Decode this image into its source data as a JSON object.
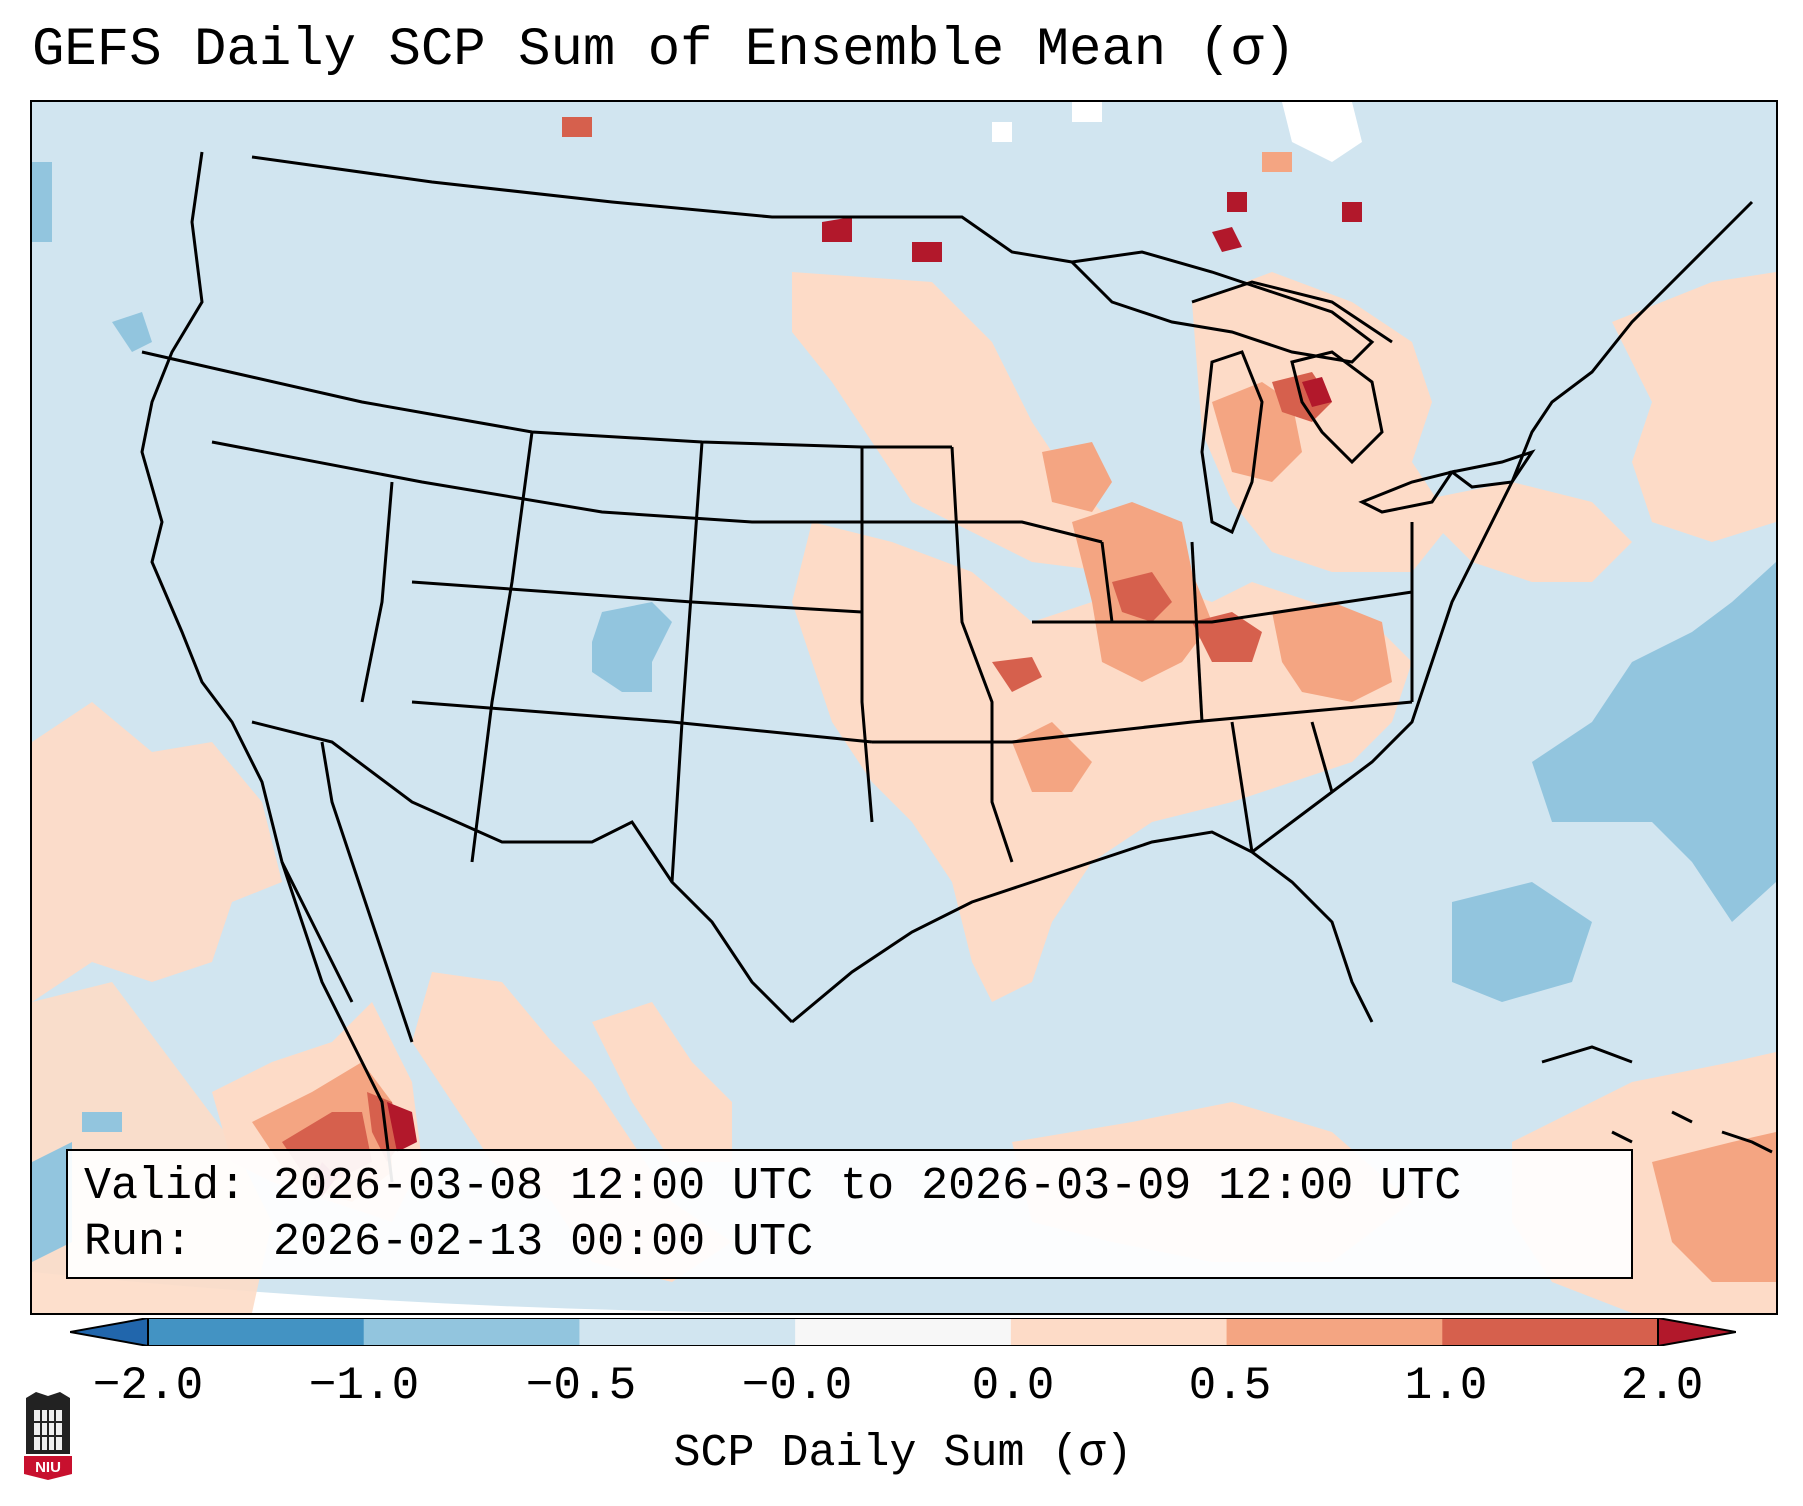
{
  "title": "GEFS Daily SCP Sum of Ensemble Mean (σ)",
  "valid_label": "Valid:",
  "valid_range": "2026-03-08 12:00 UTC to 2026-03-09 12:00 UTC",
  "run_label": "Run:",
  "run_time": "2026-02-13 00:00 UTC",
  "colorbar": {
    "label": "SCP Daily Sum (σ)",
    "ticks": [
      "−2.0",
      "−1.0",
      "−0.5",
      "−0.0",
      "0.0",
      "0.5",
      "1.0",
      "2.0"
    ],
    "bins": [
      {
        "from": -2.0,
        "to": -1.0,
        "color": "#4393c3"
      },
      {
        "from": -1.0,
        "to": -0.5,
        "color": "#92c5de"
      },
      {
        "from": -0.5,
        "to": -0.0,
        "color": "#d1e5f0"
      },
      {
        "from": -0.0,
        "to": 0.0,
        "color": "#f7f7f7"
      },
      {
        "from": 0.0,
        "to": 0.5,
        "color": "#fddbc7"
      },
      {
        "from": 0.5,
        "to": 1.0,
        "color": "#f4a582"
      },
      {
        "from": 1.0,
        "to": 2.0,
        "color": "#d6604d"
      }
    ],
    "under_color": "#2166ac",
    "over_color": "#b2182b"
  },
  "logo_text": "NIU",
  "colors": {
    "background_field": "#d1e5f0",
    "border_lines": "#000000"
  }
}
